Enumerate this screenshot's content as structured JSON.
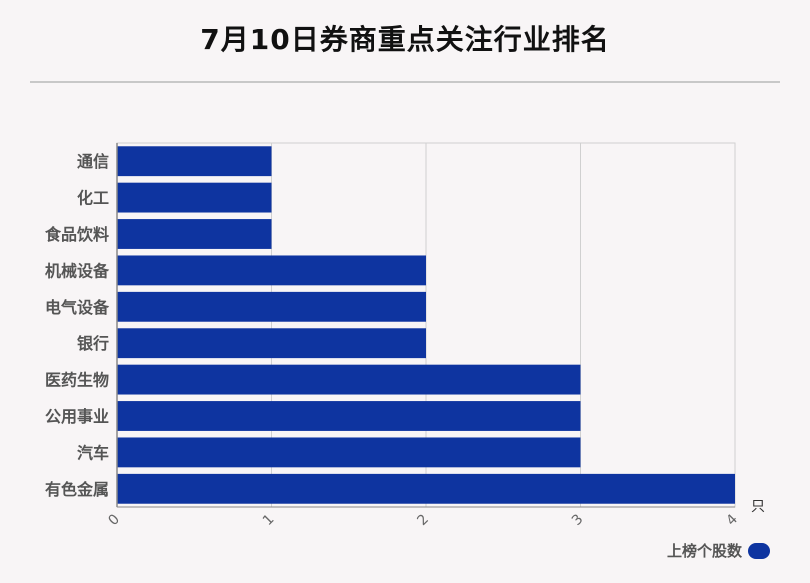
{
  "title": "7月10日券商重点关注行业排名",
  "legend_label": "上榜个股数",
  "colors": {
    "bar": "#0e34a0",
    "grid": "#d0d0d0",
    "background": "#f8f5f6"
  },
  "chart_data": {
    "type": "bar",
    "orientation": "horizontal",
    "title": "7月10日券商重点关注行业排名",
    "categories": [
      "通信",
      "化工",
      "食品饮料",
      "机械设备",
      "电气设备",
      "银行",
      "医药生物",
      "公用事业",
      "汽车",
      "有色金属"
    ],
    "series": [
      {
        "name": "上榜个股数",
        "values": [
          1,
          1,
          1,
          2,
          2,
          2,
          3,
          3,
          3,
          4
        ]
      }
    ],
    "xlim": [
      0,
      4
    ],
    "xticks": [
      "0",
      "1",
      "2",
      "3",
      "4"
    ],
    "xunit": "只",
    "grid": true,
    "legend_position": "bottom-right"
  }
}
